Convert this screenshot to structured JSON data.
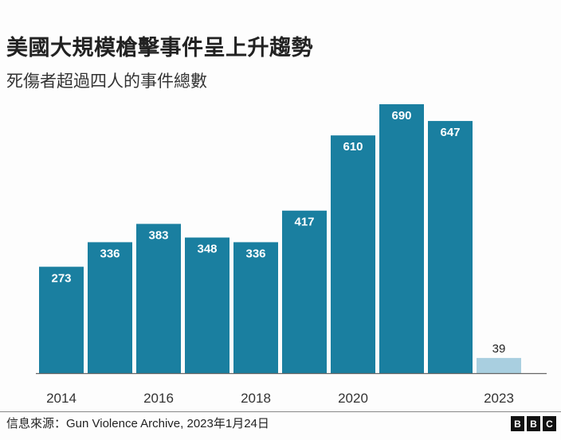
{
  "header": {
    "title": "美國大規模槍擊事件呈上升趨勢",
    "subtitle": "死傷者超過四人的事件總數"
  },
  "chart_data": {
    "type": "bar",
    "title": "美國大規模槍擊事件呈上升趨勢",
    "subtitle": "死傷者超過四人的事件總數",
    "categories": [
      "2014",
      "2015",
      "2016",
      "2017",
      "2018",
      "2019",
      "2020",
      "2021",
      "2022",
      "2023"
    ],
    "values": [
      273,
      336,
      383,
      348,
      336,
      417,
      610,
      690,
      647,
      39
    ],
    "tick_labels": [
      "2014",
      "2016",
      "2018",
      "2020",
      "2023"
    ],
    "xlabel": "",
    "ylabel": "",
    "ylim": [
      0,
      690
    ],
    "grid": false,
    "colors": {
      "main": "#1a7fa0",
      "partial": "#a9cfe0",
      "label_inside": "#ffffff",
      "label_outside": "#222222"
    },
    "partial_category": "2023"
  },
  "footer": {
    "source": "信息來源：Gun Violence Archive, 2023年1月24日",
    "logo_letters": [
      "B",
      "B",
      "C"
    ]
  }
}
